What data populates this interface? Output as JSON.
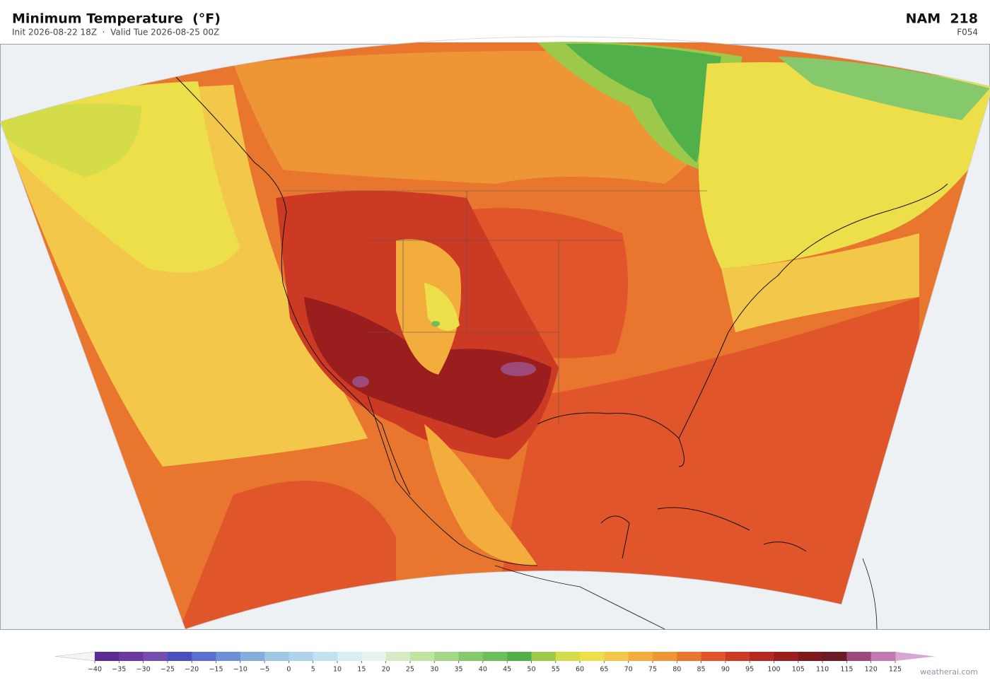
{
  "header": {
    "title": "Minimum Temperature  (°F)",
    "subtitle": "Init 2026-08-22 18Z  ·  Valid Tue 2026-08-25 00Z",
    "model": "NAM  218",
    "forecast_hour": "F054"
  },
  "colorbar": {
    "ticks": [
      {
        "value": -40,
        "label": "−40"
      },
      {
        "value": -35,
        "label": "−35"
      },
      {
        "value": -30,
        "label": "−30"
      },
      {
        "value": -25,
        "label": "−25"
      },
      {
        "value": -20,
        "label": "−20"
      },
      {
        "value": -15,
        "label": "−15"
      },
      {
        "value": -10,
        "label": "−10"
      },
      {
        "value": -5,
        "label": "−5"
      },
      0,
      5,
      10,
      15,
      20,
      25,
      30,
      35,
      40,
      45,
      50,
      55,
      60,
      65,
      70,
      75,
      80,
      85,
      90,
      95,
      100,
      105,
      110,
      115,
      120,
      125
    ],
    "colors": [
      "#5a2d91",
      "#6a3a9e",
      "#7350b0",
      "#4a4fbf",
      "#5a6fcf",
      "#6e8fd6",
      "#86aedc",
      "#9fc6e3",
      "#aed3ea",
      "#c3e2ef",
      "#d8eef3",
      "#e6f3ec",
      "#d4ebc6",
      "#bfe3a0",
      "#a4d888",
      "#86c96c",
      "#6cbf5a",
      "#52b04a",
      "#9cc94a",
      "#d4dc4a",
      "#eddf4a",
      "#f3c84a",
      "#f2ad3d",
      "#ee9535",
      "#e9762f",
      "#e0552a",
      "#cc3a23",
      "#b42a20",
      "#9a1e1e",
      "#7e1a1e",
      "#6c1a25",
      "#9c4a7a",
      "#c27ab0"
    ],
    "under_color": "#f4f4f4",
    "over_color": "#d8a6d0"
  },
  "watermark": "weatherai.com"
}
